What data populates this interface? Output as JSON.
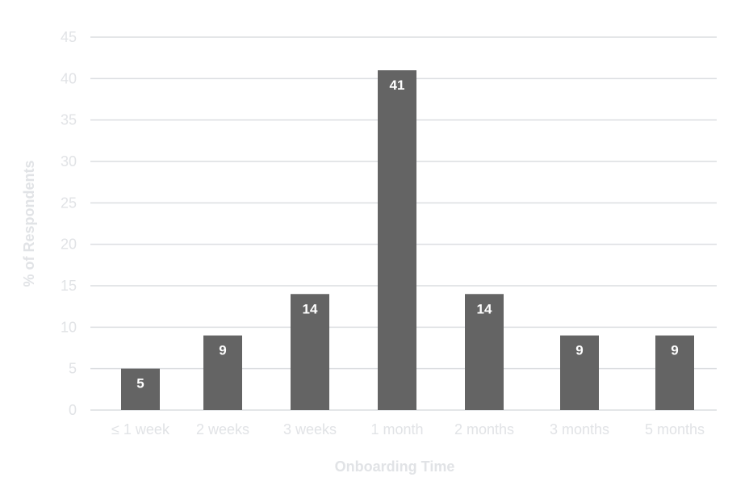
{
  "chart_data": {
    "type": "bar",
    "title": "",
    "xlabel": "Onboarding Time",
    "ylabel": "% of Respondents",
    "categories": [
      "≤ 1 week",
      "2 weeks",
      "3 weeks",
      "1 month",
      "2 months",
      "3 months",
      "5 months"
    ],
    "values": [
      5,
      9,
      14,
      41,
      14,
      9,
      9
    ],
    "data_labels": [
      "5",
      "9",
      "14",
      "41",
      "14",
      "9",
      "9"
    ],
    "ylim": [
      0,
      45
    ],
    "yticks": [
      0,
      5,
      10,
      15,
      20,
      25,
      30,
      35,
      40,
      45
    ],
    "grid": true,
    "legend": "none",
    "colors": {
      "bar": "#646464",
      "grid": "#dcdee1",
      "text": "#e1e3e6",
      "label": "#ffffff"
    }
  }
}
